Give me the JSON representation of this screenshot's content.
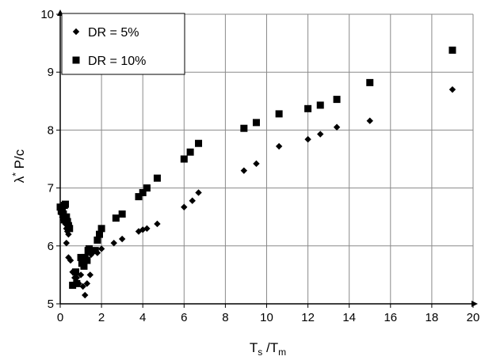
{
  "chart_data": {
    "type": "scatter",
    "xlabel": {
      "main": "T",
      "sub1": "s",
      "mid": " /T",
      "sub2": "m"
    },
    "ylabel": {
      "pre": "λ",
      "sup": "*",
      "post": " P/c"
    },
    "xlim": [
      0,
      20
    ],
    "ylim": [
      5,
      10
    ],
    "x_ticks": [
      "0",
      "2",
      "4",
      "6",
      "8",
      "10",
      "12",
      "14",
      "16",
      "18",
      "20"
    ],
    "y_ticks": [
      "5",
      "6",
      "7",
      "8",
      "9",
      "10"
    ],
    "grid": true,
    "legend_position": "top-left",
    "series": [
      {
        "name": "DR = 5%",
        "marker": "diamond",
        "color": "#000000",
        "points": [
          [
            0.05,
            6.55
          ],
          [
            0.1,
            6.5
          ],
          [
            0.15,
            6.45
          ],
          [
            0.2,
            6.42
          ],
          [
            0.25,
            6.38
          ],
          [
            0.3,
            6.3
          ],
          [
            0.35,
            6.25
          ],
          [
            0.4,
            6.2
          ],
          [
            0.3,
            6.05
          ],
          [
            0.4,
            5.8
          ],
          [
            0.5,
            5.75
          ],
          [
            0.6,
            5.55
          ],
          [
            0.7,
            5.45
          ],
          [
            0.8,
            5.45
          ],
          [
            0.9,
            5.35
          ],
          [
            1.0,
            5.5
          ],
          [
            1.1,
            5.3
          ],
          [
            1.2,
            5.15
          ],
          [
            1.3,
            5.35
          ],
          [
            1.45,
            5.5
          ],
          [
            1.5,
            5.85
          ],
          [
            1.8,
            5.88
          ],
          [
            2.0,
            5.95
          ],
          [
            2.6,
            6.05
          ],
          [
            3.0,
            6.12
          ],
          [
            3.8,
            6.25
          ],
          [
            4.0,
            6.28
          ],
          [
            4.2,
            6.3
          ],
          [
            4.7,
            6.38
          ],
          [
            6.0,
            6.67
          ],
          [
            6.4,
            6.78
          ],
          [
            6.7,
            6.92
          ],
          [
            8.9,
            7.3
          ],
          [
            9.5,
            7.42
          ],
          [
            10.6,
            7.72
          ],
          [
            12.0,
            7.84
          ],
          [
            12.6,
            7.93
          ],
          [
            13.4,
            8.05
          ],
          [
            15.0,
            8.16
          ],
          [
            19.0,
            8.7
          ]
        ]
      },
      {
        "name": "DR = 10%",
        "marker": "square",
        "color": "#000000",
        "points": [
          [
            0.0,
            6.67
          ],
          [
            0.05,
            6.6
          ],
          [
            0.1,
            6.63
          ],
          [
            0.15,
            6.55
          ],
          [
            0.2,
            6.7
          ],
          [
            0.25,
            6.72
          ],
          [
            0.3,
            6.5
          ],
          [
            0.35,
            6.42
          ],
          [
            0.4,
            6.35
          ],
          [
            0.2,
            6.45
          ],
          [
            0.45,
            6.3
          ],
          [
            0.6,
            5.32
          ],
          [
            0.75,
            5.55
          ],
          [
            0.8,
            5.35
          ],
          [
            1.0,
            5.8
          ],
          [
            1.05,
            5.7
          ],
          [
            1.15,
            5.65
          ],
          [
            1.2,
            5.8
          ],
          [
            1.3,
            5.75
          ],
          [
            1.35,
            5.92
          ],
          [
            1.4,
            5.95
          ],
          [
            1.7,
            5.92
          ],
          [
            1.8,
            6.1
          ],
          [
            1.9,
            6.2
          ],
          [
            2.0,
            6.3
          ],
          [
            2.7,
            6.48
          ],
          [
            3.0,
            6.55
          ],
          [
            3.8,
            6.85
          ],
          [
            4.0,
            6.92
          ],
          [
            4.2,
            7.0
          ],
          [
            4.7,
            7.17
          ],
          [
            6.0,
            7.5
          ],
          [
            6.3,
            7.62
          ],
          [
            6.7,
            7.77
          ],
          [
            8.9,
            8.03
          ],
          [
            9.5,
            8.13
          ],
          [
            10.6,
            8.28
          ],
          [
            12.0,
            8.37
          ],
          [
            12.6,
            8.43
          ],
          [
            13.4,
            8.53
          ],
          [
            15.0,
            8.82
          ],
          [
            19.0,
            9.38
          ]
        ]
      }
    ]
  }
}
